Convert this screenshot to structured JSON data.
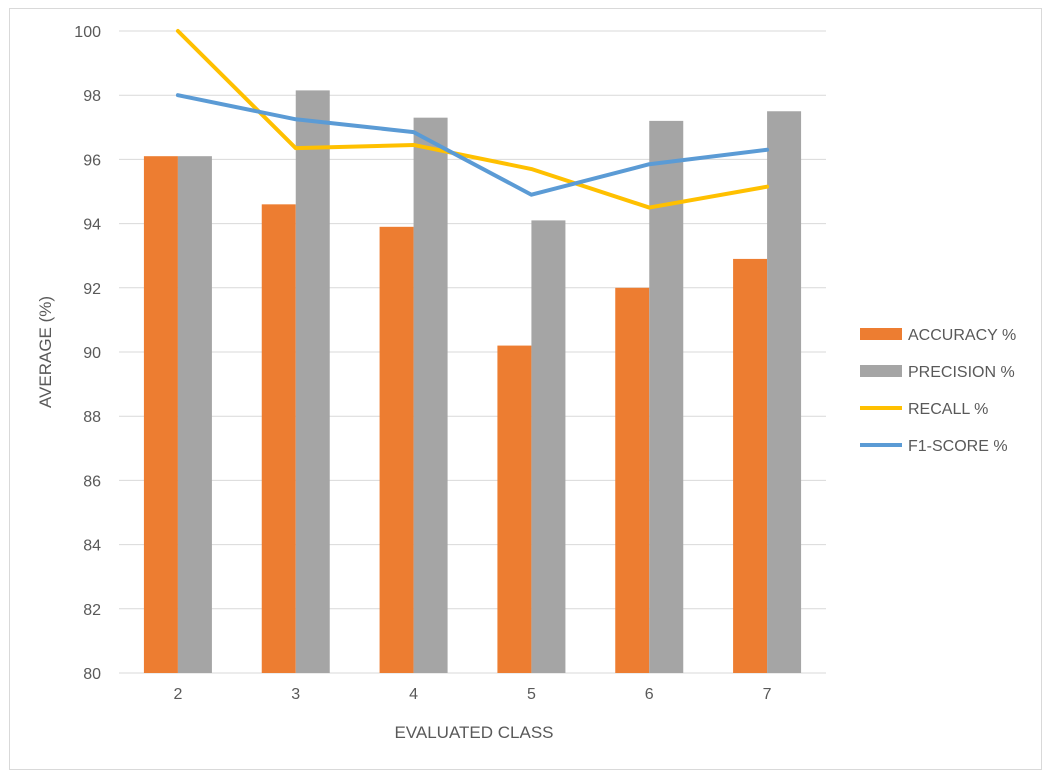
{
  "chart_data": {
    "type": "bar",
    "title": "",
    "xlabel": "EVALUATED CLASS",
    "ylabel": "AVERAGE (%)",
    "ylim": [
      80,
      100
    ],
    "yticks": [
      80,
      82,
      84,
      86,
      88,
      90,
      92,
      94,
      96,
      98,
      100
    ],
    "categories": [
      "2",
      "3",
      "4",
      "5",
      "6",
      "7"
    ],
    "grid": true,
    "legend_position": "right",
    "series": [
      {
        "name": "ACCURACY  %",
        "kind": "bar",
        "color": "#ED7D31",
        "values": [
          96.1,
          94.6,
          93.9,
          90.2,
          92.0,
          92.9
        ]
      },
      {
        "name": "PRECISION %",
        "kind": "bar",
        "color": "#A5A5A5",
        "values": [
          96.1,
          98.15,
          97.3,
          94.1,
          97.2,
          97.5
        ]
      },
      {
        "name": "RECALL %",
        "kind": "line",
        "color": "#FFC000",
        "values": [
          100.0,
          96.35,
          96.45,
          95.7,
          94.5,
          95.15
        ]
      },
      {
        "name": "F1-SCORE %",
        "kind": "line",
        "color": "#5B9BD5",
        "values": [
          98.0,
          97.25,
          96.85,
          94.9,
          95.85,
          96.3
        ]
      }
    ]
  }
}
